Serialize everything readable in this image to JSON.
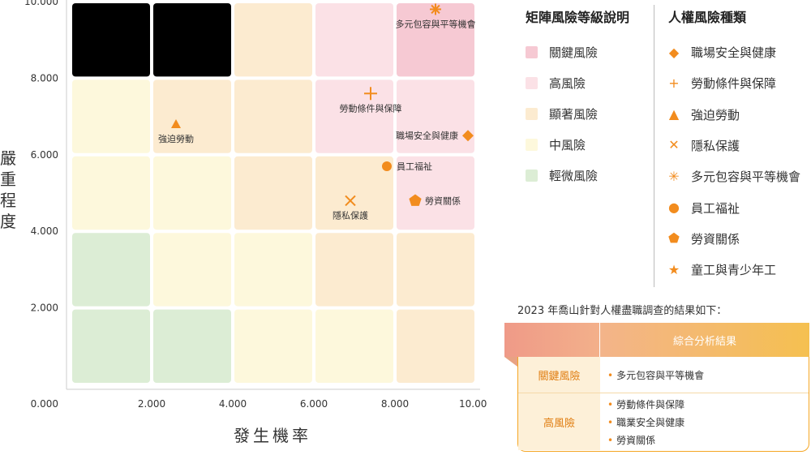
{
  "chart_data": {
    "type": "scatter",
    "xlabel": "發生機率",
    "ylabel": "嚴重程度",
    "xlim": [
      0,
      10
    ],
    "ylim": [
      0,
      10
    ],
    "x_ticks": [
      "0.000",
      "2.000",
      "4.000",
      "6.000",
      "8.000",
      "10.000"
    ],
    "y_ticks": [
      "2.000",
      "4.000",
      "6.000",
      "8.000",
      "10.000"
    ],
    "grid_levels": [
      [
        "severe",
        "severe",
        "significant",
        "high",
        "critical"
      ],
      [
        "medium",
        "significant",
        "significant",
        "high",
        "high"
      ],
      [
        "medium",
        "medium",
        "significant",
        "significant",
        "high"
      ],
      [
        "minor",
        "medium",
        "medium",
        "significant",
        "significant"
      ],
      [
        "minor",
        "minor",
        "medium",
        "medium",
        "significant"
      ]
    ],
    "level_colors": {
      "critical": "#f6c9d3",
      "high": "#fbe1e6",
      "significant": "#fcebd0",
      "medium": "#fdf8dc",
      "minor": "#dcedd5"
    },
    "points": [
      {
        "label": "多元包容與平等機會",
        "shape": "asterisk",
        "x": 9.0,
        "y": 9.8,
        "label_pos": "below"
      },
      {
        "label": "勞動條件與保障",
        "shape": "plus",
        "x": 7.4,
        "y": 7.6,
        "label_pos": "below"
      },
      {
        "label": "強迫勞動",
        "shape": "triangle",
        "x": 2.6,
        "y": 6.8,
        "label_pos": "below"
      },
      {
        "label": "職場安全與健康",
        "shape": "diamond",
        "x": 9.8,
        "y": 6.5,
        "label_pos": "left"
      },
      {
        "label": "員工福祉",
        "shape": "circle",
        "x": 7.8,
        "y": 5.7,
        "label_pos": "right"
      },
      {
        "label": "隱私保護",
        "shape": "cross",
        "x": 6.9,
        "y": 4.8,
        "label_pos": "below"
      },
      {
        "label": "勞資關係",
        "shape": "pentagon",
        "x": 8.5,
        "y": 4.8,
        "label_pos": "right"
      }
    ]
  },
  "legend_levels": {
    "title": "矩陣風險等級說明",
    "items": [
      {
        "label": "關鍵風險",
        "color": "#f6c9d3"
      },
      {
        "label": "高風險",
        "color": "#fbe1e6"
      },
      {
        "label": "顯著風險",
        "color": "#fcebd0"
      },
      {
        "label": "中風險",
        "color": "#fdf8dc"
      },
      {
        "label": "輕微風險",
        "color": "#dcedd5"
      }
    ]
  },
  "legend_types": {
    "title": "人權風險種類",
    "items": [
      {
        "label": "職場安全與健康",
        "icon": "diamond-icon",
        "glyph": "◆"
      },
      {
        "label": "勞動條件與保障",
        "icon": "plus-icon",
        "glyph": "+"
      },
      {
        "label": "強迫勞動",
        "icon": "triangle-icon",
        "glyph": "▲"
      },
      {
        "label": "隱私保護",
        "icon": "cross-icon",
        "glyph": "✕"
      },
      {
        "label": "多元包容與平等機會",
        "icon": "asterisk-icon",
        "glyph": "✳"
      },
      {
        "label": "員工福祉",
        "icon": "circle-icon",
        "glyph": "●"
      },
      {
        "label": "勞資關係",
        "icon": "pentagon-icon",
        "glyph": "⬟"
      },
      {
        "label": "童工與青少年工",
        "icon": "star-icon",
        "glyph": "★"
      }
    ]
  },
  "summary": {
    "title": "2023 年喬山針對人權盡職調查的結果如下：",
    "header": "綜合分析結果",
    "rows": [
      {
        "label": "關鍵風險",
        "items": [
          "多元包容與平等機會"
        ]
      },
      {
        "label": "高風險",
        "items": [
          "勞動條件與保障",
          "職業安全與健康",
          "勞資關係"
        ]
      }
    ]
  }
}
